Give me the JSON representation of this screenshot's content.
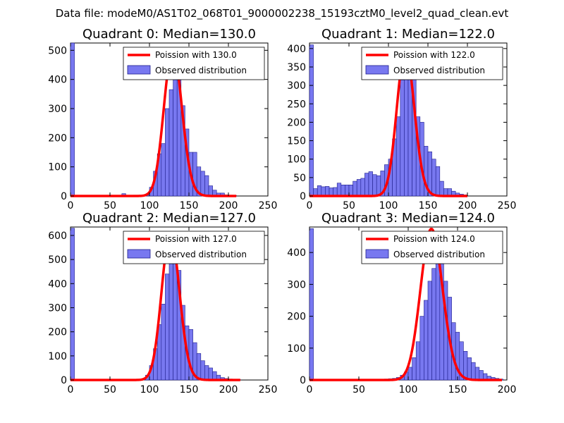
{
  "suptitle": "Data file: modeM0/AS1T02_068T01_9000002238_15193cztM0_level2_quad_clean.evt",
  "colors": {
    "bar_fill": "#7878f0",
    "bar_edge": "#1e1e8c",
    "poisson_line": "#ff0000"
  },
  "chart_data": [
    {
      "type": "bar",
      "title": "Quadrant 0: Median=130.0",
      "legend_location": "top-right",
      "legend": {
        "line_label": "Poission with 130.0",
        "bar_label": "Observed distribution"
      },
      "xlim": [
        0,
        250
      ],
      "ylim": [
        0,
        525
      ],
      "xticks": [
        0,
        50,
        100,
        150,
        200,
        250
      ],
      "yticks": [
        0,
        100,
        200,
        300,
        400,
        500
      ],
      "bin_width": 5,
      "bins": [
        [
          0,
          525
        ],
        [
          65,
          8
        ],
        [
          80,
          3
        ],
        [
          85,
          3
        ],
        [
          90,
          4
        ],
        [
          95,
          3
        ],
        [
          100,
          30
        ],
        [
          105,
          85
        ],
        [
          110,
          145
        ],
        [
          115,
          180
        ],
        [
          120,
          300
        ],
        [
          125,
          365
        ],
        [
          130,
          480
        ],
        [
          135,
          430
        ],
        [
          140,
          310
        ],
        [
          145,
          230
        ],
        [
          150,
          150
        ],
        [
          155,
          150
        ],
        [
          160,
          100
        ],
        [
          165,
          85
        ],
        [
          170,
          70
        ],
        [
          175,
          35
        ],
        [
          180,
          20
        ],
        [
          185,
          10
        ],
        [
          190,
          10
        ],
        [
          195,
          4
        ],
        [
          200,
          3
        ],
        [
          205,
          2
        ]
      ],
      "poisson": {
        "mu": 130.0,
        "scale": 501,
        "x_range": [
          0,
          210
        ]
      }
    },
    {
      "type": "bar",
      "title": "Quadrant 1: Median=122.0",
      "legend_location": "top-right",
      "legend": {
        "line_label": "Poission with 122.0",
        "bar_label": "Observed distribution"
      },
      "xlim": [
        0,
        250
      ],
      "ylim": [
        0,
        415
      ],
      "xticks": [
        0,
        50,
        100,
        150,
        200,
        250
      ],
      "yticks": [
        0,
        50,
        100,
        150,
        200,
        250,
        300,
        350,
        400
      ],
      "bin_width": 5,
      "bins": [
        [
          0,
          410
        ],
        [
          5,
          20
        ],
        [
          10,
          28
        ],
        [
          15,
          25
        ],
        [
          20,
          26
        ],
        [
          25,
          22
        ],
        [
          30,
          23
        ],
        [
          35,
          35
        ],
        [
          40,
          30
        ],
        [
          45,
          30
        ],
        [
          50,
          30
        ],
        [
          55,
          40
        ],
        [
          60,
          45
        ],
        [
          65,
          48
        ],
        [
          70,
          62
        ],
        [
          75,
          66
        ],
        [
          80,
          58
        ],
        [
          85,
          55
        ],
        [
          90,
          68
        ],
        [
          95,
          85
        ],
        [
          100,
          100
        ],
        [
          105,
          155
        ],
        [
          110,
          215
        ],
        [
          115,
          315
        ],
        [
          120,
          345
        ],
        [
          125,
          370
        ],
        [
          130,
          320
        ],
        [
          135,
          215
        ],
        [
          140,
          200
        ],
        [
          145,
          135
        ],
        [
          150,
          120
        ],
        [
          155,
          100
        ],
        [
          160,
          80
        ],
        [
          165,
          40
        ],
        [
          170,
          20
        ],
        [
          175,
          20
        ],
        [
          180,
          13
        ],
        [
          185,
          8
        ],
        [
          190,
          5
        ],
        [
          195,
          3
        ]
      ],
      "poisson": {
        "mu": 122.0,
        "scale": 395,
        "x_range": [
          0,
          200
        ]
      }
    },
    {
      "type": "bar",
      "title": "Quadrant 2: Median=127.0",
      "legend_location": "top-right",
      "legend": {
        "line_label": "Poission with 127.0",
        "bar_label": "Observed distribution"
      },
      "xlim": [
        0,
        250
      ],
      "ylim": [
        0,
        635
      ],
      "xticks": [
        0,
        50,
        100,
        150,
        200,
        250
      ],
      "yticks": [
        0,
        100,
        200,
        300,
        400,
        500,
        600
      ],
      "bin_width": 5,
      "bins": [
        [
          0,
          630
        ],
        [
          70,
          3
        ],
        [
          80,
          3
        ],
        [
          90,
          5
        ],
        [
          95,
          20
        ],
        [
          100,
          60
        ],
        [
          105,
          130
        ],
        [
          110,
          230
        ],
        [
          115,
          315
        ],
        [
          120,
          440
        ],
        [
          125,
          560
        ],
        [
          130,
          550
        ],
        [
          135,
          455
        ],
        [
          140,
          310
        ],
        [
          145,
          225
        ],
        [
          150,
          210
        ],
        [
          155,
          155
        ],
        [
          160,
          110
        ],
        [
          165,
          80
        ],
        [
          170,
          60
        ],
        [
          175,
          50
        ],
        [
          180,
          35
        ],
        [
          185,
          20
        ],
        [
          190,
          10
        ],
        [
          195,
          6
        ],
        [
          200,
          4
        ],
        [
          210,
          2
        ]
      ],
      "poisson": {
        "mu": 127.0,
        "scale": 610,
        "x_range": [
          0,
          215
        ]
      }
    },
    {
      "type": "bar",
      "title": "Quadrant 3: Median=124.0",
      "legend_location": "top-right",
      "legend": {
        "line_label": "Poission with 124.0",
        "bar_label": "Observed distribution"
      },
      "xlim": [
        0,
        200
      ],
      "ylim": [
        0,
        480
      ],
      "xticks": [
        0,
        50,
        100,
        150,
        200
      ],
      "yticks": [
        0,
        100,
        200,
        300,
        400
      ],
      "bin_width": 4,
      "bins": [
        [
          0,
          475
        ],
        [
          76,
          3
        ],
        [
          80,
          4
        ],
        [
          84,
          5
        ],
        [
          88,
          8
        ],
        [
          92,
          15
        ],
        [
          96,
          25
        ],
        [
          100,
          40
        ],
        [
          104,
          70
        ],
        [
          108,
          120
        ],
        [
          112,
          200
        ],
        [
          116,
          250
        ],
        [
          120,
          310
        ],
        [
          124,
          350
        ],
        [
          128,
          440
        ],
        [
          132,
          400
        ],
        [
          136,
          310
        ],
        [
          140,
          260
        ],
        [
          144,
          180
        ],
        [
          148,
          150
        ],
        [
          152,
          120
        ],
        [
          156,
          90
        ],
        [
          160,
          70
        ],
        [
          164,
          55
        ],
        [
          168,
          40
        ],
        [
          172,
          30
        ],
        [
          176,
          20
        ],
        [
          180,
          12
        ],
        [
          184,
          8
        ],
        [
          188,
          5
        ],
        [
          192,
          3
        ]
      ],
      "poisson": {
        "mu": 124.0,
        "scale": 474,
        "x_range": [
          0,
          195
        ]
      }
    }
  ]
}
